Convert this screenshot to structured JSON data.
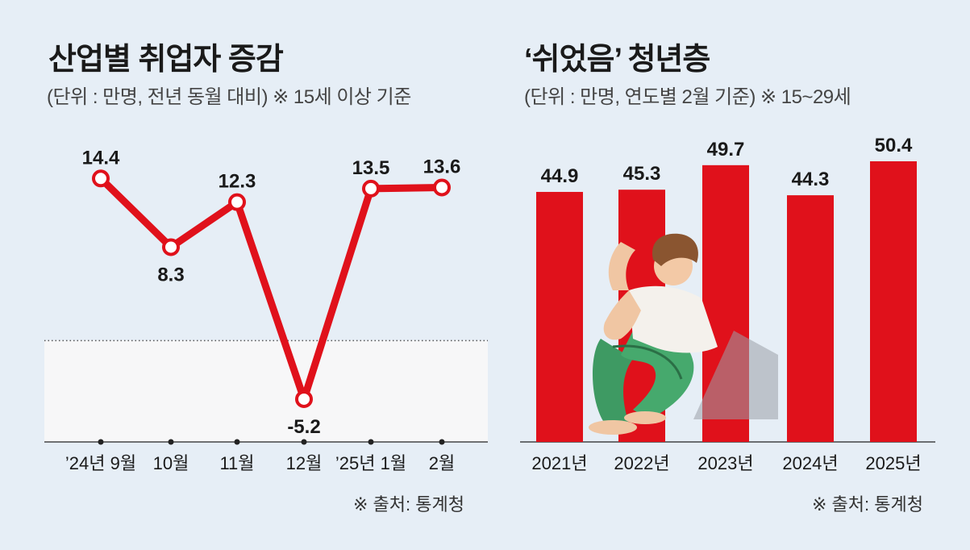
{
  "left": {
    "title": "산업별 취업자 증감",
    "subtitle": "(단위 : 만명, 전년 동월 대비) ※ 15세 이상 기준",
    "source": "※ 출처: 통계청"
  },
  "right": {
    "title": "‘쉬었음’ 청년층",
    "subtitle": "(단위 : 만명, 연도별 2월 기준) ※ 15~29세",
    "source": "※ 출처: 통계청"
  },
  "colors": {
    "accent": "#e0111b",
    "background": "#e6eef6",
    "negative_area": "#f7f7f8"
  },
  "chart_data": [
    {
      "type": "line",
      "categories": [
        "’24년 9월",
        "10월",
        "11월",
        "12월",
        "’25년 1월",
        "2월"
      ],
      "values": [
        14.4,
        8.3,
        12.3,
        -5.2,
        13.5,
        13.6
      ],
      "value_labels": [
        "14.4",
        "8.3",
        "12.3",
        "-5.2",
        "13.5",
        "13.6"
      ],
      "ylim": [
        -9,
        17
      ],
      "zero_line": "dotted",
      "grid": false,
      "legend": "none"
    },
    {
      "type": "bar",
      "categories": [
        "2021년",
        "2022년",
        "2023년",
        "2024년",
        "2025년"
      ],
      "values": [
        44.9,
        45.3,
        49.7,
        44.3,
        50.4
      ],
      "value_labels": [
        "44.9",
        "45.3",
        "49.7",
        "44.3",
        "50.4"
      ],
      "ylim": [
        0,
        50.4
      ],
      "grid": false,
      "legend": "none"
    }
  ]
}
